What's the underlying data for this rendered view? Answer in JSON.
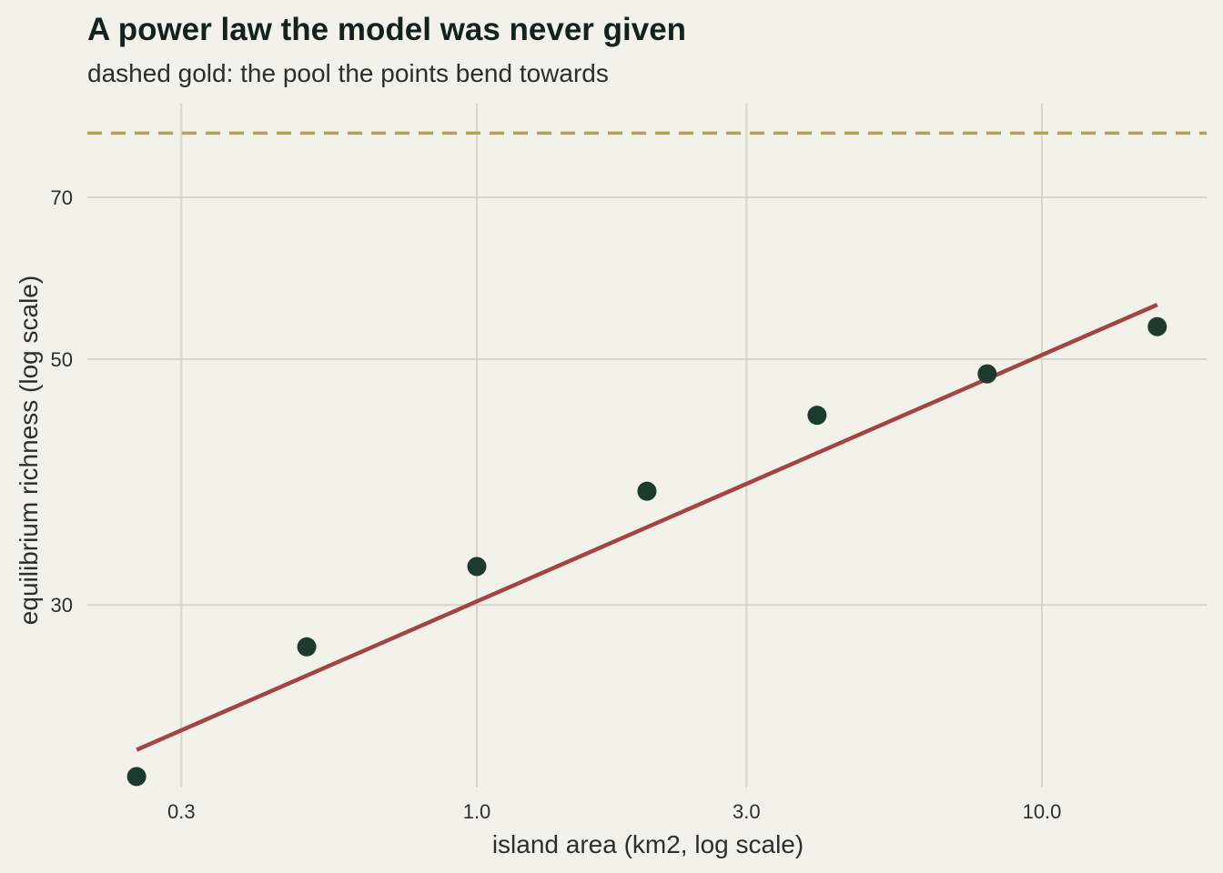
{
  "chart_data": {
    "type": "scatter",
    "title": "A power law the model was never given",
    "subtitle": "dashed gold: the pool the points bend towards",
    "xlabel": "island area (km2, log scale)",
    "ylabel": "equilibrium richness (log scale)",
    "x_scale": "log",
    "y_scale": "log",
    "xlim": [
      0.2,
      19
    ],
    "ylim": [
      20,
      90
    ],
    "x_ticks": [
      0.3,
      1.0,
      3.0,
      10.0
    ],
    "x_tick_labels": [
      "0.3",
      "1.0",
      "3.0",
      "10.0"
    ],
    "y_ticks": [
      30,
      50,
      70
    ],
    "y_tick_labels": [
      "30",
      "50",
      "70"
    ],
    "points": {
      "x": [
        0.25,
        0.5,
        1.0,
        2.0,
        4.0,
        8.0,
        16.0
      ],
      "y": [
        21.0,
        27.5,
        32.5,
        38.0,
        44.5,
        48.5,
        53.5
      ]
    },
    "fit_line": {
      "x": [
        0.25,
        16.0
      ],
      "y": [
        22.2,
        56.0
      ],
      "color": "#a34444"
    },
    "reference_line": {
      "y": 80,
      "style": "dashed",
      "color": "#b9a24f"
    },
    "point_color": "#1d3b2c",
    "grid": true,
    "legend": "none"
  }
}
